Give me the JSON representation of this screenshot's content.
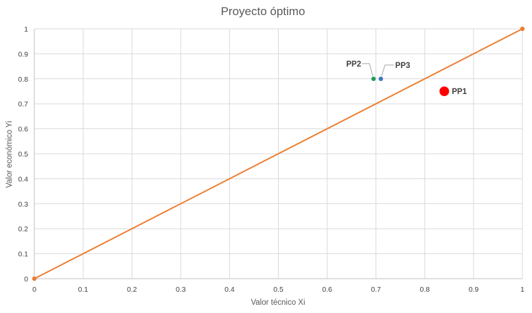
{
  "chart_data": {
    "type": "scatter",
    "title": "Proyecto óptimo",
    "xlabel": "Valor técnico Xi",
    "ylabel": "Valor económico Yi",
    "xlim": [
      0,
      1
    ],
    "ylim": [
      0,
      1
    ],
    "x_ticks": [
      "0",
      "0.1",
      "0.2",
      "0.3",
      "0.4",
      "0.5",
      "0.6",
      "0.7",
      "0.8",
      "0.9",
      "1"
    ],
    "y_ticks": [
      "0",
      "0.1",
      "0.2",
      "0.3",
      "0.4",
      "0.5",
      "0.6",
      "0.7",
      "0.8",
      "0.9",
      "1"
    ],
    "grid": true,
    "line": {
      "points": [
        {
          "x": 0,
          "y": 0
        },
        {
          "x": 1,
          "y": 1
        }
      ],
      "color": "#ED7D31"
    },
    "points": [
      {
        "label": "PP1",
        "x": 0.84,
        "y": 0.75,
        "color": "#FF0000",
        "size": "large"
      },
      {
        "label": "PP2",
        "x": 0.695,
        "y": 0.8,
        "color": "#1E9E5A",
        "size": "small"
      },
      {
        "label": "PP3",
        "x": 0.71,
        "y": 0.8,
        "color": "#4472C4",
        "size": "small"
      }
    ]
  }
}
